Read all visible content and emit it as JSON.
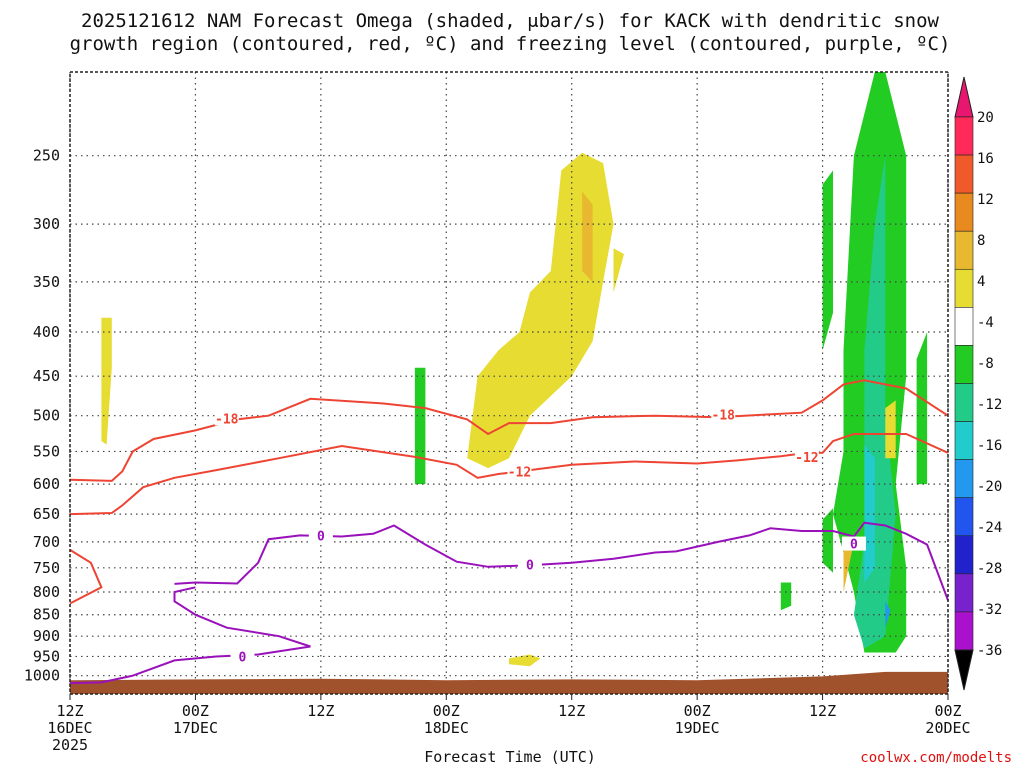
{
  "chart_data": {
    "type": "time-height cross section",
    "title_line1": "2025121612 NAM Forecast Omega (shaded, μbar/s) for KACK with dendritic snow",
    "title_line2": "growth region (contoured, red, ºC) and freezing level (contoured, purple, ºC)",
    "xlabel": "Forecast Time (UTC)",
    "credit": "coolwx.com/modelts",
    "x_ticks": [
      {
        "hour": 0,
        "l1": "12Z",
        "l2": "16DEC",
        "l3": "2025"
      },
      {
        "hour": 12,
        "l1": "00Z",
        "l2": "17DEC",
        "l3": ""
      },
      {
        "hour": 24,
        "l1": "12Z",
        "l2": "",
        "l3": ""
      },
      {
        "hour": 36,
        "l1": "00Z",
        "l2": "18DEC",
        "l3": ""
      },
      {
        "hour": 48,
        "l1": "12Z",
        "l2": "",
        "l3": ""
      },
      {
        "hour": 60,
        "l1": "00Z",
        "l2": "19DEC",
        "l3": ""
      },
      {
        "hour": 72,
        "l1": "12Z",
        "l2": "",
        "l3": ""
      },
      {
        "hour": 84,
        "l1": "00Z",
        "l2": "20DEC",
        "l3": ""
      }
    ],
    "x_range_hours": [
      0,
      84
    ],
    "y_ticks_mb": [
      250,
      300,
      350,
      400,
      450,
      500,
      550,
      600,
      650,
      700,
      750,
      800,
      850,
      900,
      950,
      1000
    ],
    "y_range_mb": [
      200,
      1050
    ],
    "colorbar": {
      "labels": [
        "20",
        "16",
        "12",
        "8",
        "4",
        "-4",
        "-8",
        "-12",
        "-16",
        "-20",
        "-24",
        "-28",
        "-32",
        "-36"
      ],
      "colors": [
        "#ff2a5a",
        "#f05a2a",
        "#e88a1e",
        "#e8b830",
        "#e6dc32",
        "#ffffff",
        "#22cc22",
        "#22cc88",
        "#22cccc",
        "#2299ee",
        "#2255ee",
        "#2222cc",
        "#7722cc",
        "#aa11cc",
        "#aaaaaa",
        "#000000"
      ],
      "top_arrow_color": "#e8166e",
      "bottom_arrow_color": "#000000"
    },
    "contours": [
      {
        "name": "dgz-minus18",
        "label": "-18",
        "color": "#ee4433",
        "points": [
          [
            0,
            593
          ],
          [
            4,
            595
          ],
          [
            5,
            580
          ],
          [
            6,
            550
          ],
          [
            8,
            532
          ],
          [
            12,
            520
          ],
          [
            16,
            505
          ],
          [
            19,
            500
          ],
          [
            23,
            478
          ],
          [
            30,
            484
          ],
          [
            34,
            490
          ],
          [
            38,
            505
          ],
          [
            40,
            525
          ],
          [
            42,
            510
          ],
          [
            46,
            510
          ],
          [
            50,
            502
          ],
          [
            56,
            500
          ],
          [
            62,
            502
          ],
          [
            66,
            499
          ],
          [
            70,
            496
          ],
          [
            72,
            480
          ],
          [
            74,
            460
          ],
          [
            76,
            455
          ],
          [
            80,
            465
          ],
          [
            84,
            500
          ]
        ]
      },
      {
        "name": "dgz-minus12",
        "label": "-12",
        "color": "#ee4433",
        "points": [
          [
            0,
            650
          ],
          [
            4,
            648
          ],
          [
            5,
            635
          ],
          [
            7,
            605
          ],
          [
            10,
            590
          ],
          [
            14,
            578
          ],
          [
            20,
            560
          ],
          [
            26,
            542
          ],
          [
            33,
            558
          ],
          [
            37,
            570
          ],
          [
            39,
            590
          ],
          [
            41,
            584
          ],
          [
            44,
            578
          ],
          [
            48,
            570
          ],
          [
            54,
            565
          ],
          [
            60,
            568
          ],
          [
            64,
            563
          ],
          [
            68,
            557
          ],
          [
            70,
            553
          ],
          [
            72,
            552
          ],
          [
            73,
            535
          ],
          [
            75,
            525
          ],
          [
            80,
            525
          ],
          [
            84,
            552
          ]
        ]
      },
      {
        "name": "dgz-lower",
        "label": "",
        "color": "#ee4433",
        "points": [
          [
            0,
            715
          ],
          [
            2,
            740
          ],
          [
            3,
            790
          ],
          [
            0,
            825
          ]
        ]
      },
      {
        "name": "freezing-level",
        "label": "0",
        "color": "#9911bb",
        "points": [
          [
            10,
            783
          ],
          [
            12,
            780
          ],
          [
            16,
            782
          ],
          [
            18,
            740
          ],
          [
            19,
            695
          ],
          [
            22,
            688
          ],
          [
            26,
            690
          ],
          [
            29,
            685
          ],
          [
            31,
            670
          ],
          [
            34,
            705
          ],
          [
            37,
            738
          ],
          [
            40,
            748
          ],
          [
            44,
            745
          ],
          [
            48,
            740
          ],
          [
            52,
            732
          ],
          [
            56,
            720
          ],
          [
            58,
            718
          ],
          [
            62,
            700
          ],
          [
            65,
            688
          ],
          [
            67,
            675
          ],
          [
            70,
            680
          ],
          [
            73,
            680
          ],
          [
            75,
            690
          ],
          [
            76,
            665
          ],
          [
            78,
            670
          ],
          [
            80,
            685
          ],
          [
            82,
            705
          ],
          [
            84,
            818
          ]
        ]
      },
      {
        "name": "freezing-level-lower",
        "label": "0",
        "color": "#9911bb",
        "points": [
          [
            0,
            1020
          ],
          [
            3,
            1018
          ],
          [
            6,
            1000
          ],
          [
            10,
            960
          ],
          [
            14,
            950
          ],
          [
            18,
            945
          ],
          [
            23,
            925
          ],
          [
            20,
            900
          ],
          [
            15,
            880
          ],
          [
            12,
            850
          ],
          [
            10,
            820
          ],
          [
            10,
            800
          ],
          [
            12,
            790
          ]
        ]
      }
    ],
    "omega_shading": [
      {
        "value": 4,
        "color": "#e6dc32",
        "points": [
          [
            3,
            385
          ],
          [
            4,
            385
          ],
          [
            4,
            440
          ],
          [
            3.5,
            540
          ],
          [
            3,
            535
          ]
        ]
      },
      {
        "value": 4,
        "color": "#e6dc32",
        "points": [
          [
            39,
            450
          ],
          [
            41,
            420
          ],
          [
            43,
            400
          ],
          [
            44,
            360
          ],
          [
            46,
            340
          ],
          [
            47,
            260
          ],
          [
            49,
            248
          ],
          [
            51,
            255
          ],
          [
            52,
            300
          ],
          [
            51,
            350
          ],
          [
            50,
            410
          ],
          [
            48,
            450
          ],
          [
            44,
            500
          ],
          [
            42,
            560
          ],
          [
            40,
            575
          ],
          [
            38,
            560
          ]
        ]
      },
      {
        "value": 8,
        "color": "#e8b830",
        "points": [
          [
            49,
            275
          ],
          [
            50,
            285
          ],
          [
            50,
            350
          ],
          [
            49,
            340
          ]
        ]
      },
      {
        "value": 4,
        "color": "#e6dc32",
        "points": [
          [
            42,
            955
          ],
          [
            44,
            945
          ],
          [
            45,
            955
          ],
          [
            44,
            975
          ],
          [
            42,
            970
          ]
        ]
      },
      {
        "value": 4,
        "color": "#e6dc32",
        "points": [
          [
            52,
            320
          ],
          [
            53,
            325
          ],
          [
            52,
            360
          ]
        ]
      },
      {
        "value": 4,
        "color": "#e6dc32",
        "points": [
          [
            79,
            320
          ],
          [
            80,
            330
          ],
          [
            79,
            360
          ]
        ]
      },
      {
        "value": -4,
        "color": "#22cc22",
        "points": [
          [
            33,
            440
          ],
          [
            34,
            440
          ],
          [
            34,
            600
          ],
          [
            33,
            600
          ]
        ]
      },
      {
        "value": -4,
        "color": "#22cc22",
        "points": [
          [
            72,
            270
          ],
          [
            73,
            260
          ],
          [
            73,
            380
          ],
          [
            72,
            420
          ]
        ]
      },
      {
        "value": -4,
        "color": "#22cc22",
        "points": [
          [
            74,
            420
          ],
          [
            75,
            250
          ],
          [
            77,
            200
          ],
          [
            78,
            200
          ],
          [
            80,
            250
          ],
          [
            80,
            450
          ],
          [
            79,
            600
          ],
          [
            80,
            750
          ],
          [
            80,
            900
          ],
          [
            79,
            940
          ],
          [
            76,
            940
          ],
          [
            75,
            800
          ],
          [
            74,
            720
          ],
          [
            73,
            650
          ],
          [
            74,
            550
          ]
        ]
      },
      {
        "value": -8,
        "color": "#22cc88",
        "points": [
          [
            76,
            420
          ],
          [
            77,
            300
          ],
          [
            78,
            250
          ],
          [
            78,
            500
          ],
          [
            79,
            650
          ],
          [
            78,
            900
          ],
          [
            76,
            930
          ],
          [
            75,
            850
          ],
          [
            76,
            700
          ]
        ]
      },
      {
        "value": -4,
        "color": "#22cc22",
        "points": [
          [
            81,
            430
          ],
          [
            82,
            400
          ],
          [
            82,
            600
          ],
          [
            81,
            600
          ]
        ]
      },
      {
        "value": -4,
        "color": "#22cc22",
        "points": [
          [
            68,
            780
          ],
          [
            69,
            780
          ],
          [
            69,
            830
          ],
          [
            68,
            840
          ]
        ]
      },
      {
        "value": -4,
        "color": "#22cc22",
        "points": [
          [
            72,
            660
          ],
          [
            73,
            640
          ],
          [
            73,
            760
          ],
          [
            72,
            740
          ]
        ]
      },
      {
        "value": -12,
        "color": "#22cccc",
        "points": [
          [
            76,
            540
          ],
          [
            77,
            560
          ],
          [
            77,
            750
          ],
          [
            76,
            780
          ]
        ]
      },
      {
        "value": -16,
        "color": "#2299ee",
        "points": [
          [
            78,
            820
          ],
          [
            78.5,
            840
          ],
          [
            78,
            880
          ]
        ]
      },
      {
        "value": 4,
        "color": "#e6dc32",
        "points": [
          [
            78,
            490
          ],
          [
            79,
            480
          ],
          [
            79,
            560
          ],
          [
            78,
            560
          ]
        ]
      },
      {
        "value": 8,
        "color": "#e8b830",
        "points": [
          [
            74,
            700
          ],
          [
            75,
            700
          ],
          [
            74,
            800
          ]
        ]
      }
    ]
  }
}
